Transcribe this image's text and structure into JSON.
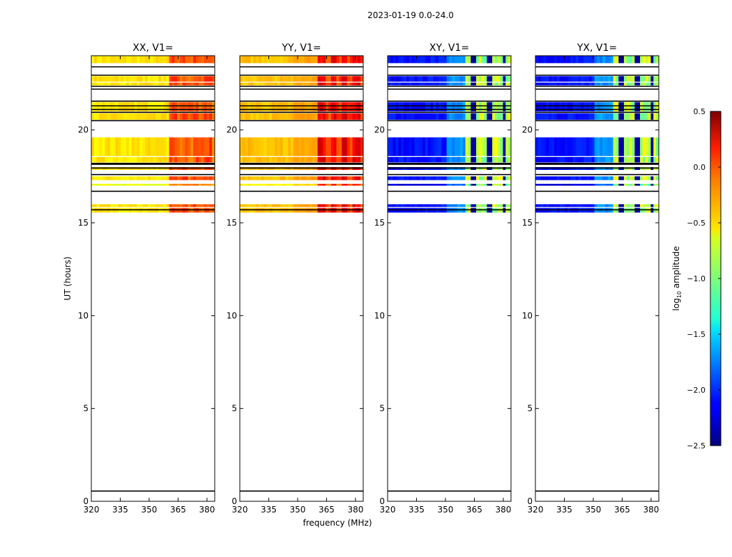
{
  "chart_data": {
    "type": "heatmap",
    "suptitle": "2023-01-19 0.0-24.0",
    "xlabel": "frequency (MHz)",
    "ylabel": "UT (hours)",
    "xlim": [
      320,
      384
    ],
    "ylim": [
      0,
      24
    ],
    "xticks": [
      320,
      335,
      350,
      365,
      380
    ],
    "yticks": [
      0,
      5,
      10,
      15,
      20
    ],
    "panels": [
      {
        "title": "XX, V1=",
        "kind": "parallel"
      },
      {
        "title": "YY, V1=",
        "kind": "parallel-strong"
      },
      {
        "title": "XY, V1=",
        "kind": "cross"
      },
      {
        "title": "YX, V1=",
        "kind": "cross"
      }
    ],
    "data_bands_ut": [
      [
        23.6,
        24.0
      ],
      [
        22.6,
        22.9
      ],
      [
        22.4,
        22.55
      ],
      [
        21.0,
        21.5
      ],
      [
        20.55,
        20.9
      ],
      [
        18.6,
        19.6
      ],
      [
        18.25,
        18.55
      ],
      [
        17.85,
        18.0
      ],
      [
        17.3,
        17.5
      ],
      [
        17.0,
        17.1
      ],
      [
        15.85,
        16.0
      ],
      [
        15.55,
        15.8
      ]
    ],
    "gap_lines_ut": [
      23.4,
      22.95,
      22.35,
      22.2,
      21.55,
      21.3,
      21.1,
      20.95,
      20.5,
      18.2,
      18.15,
      17.95,
      17.6,
      16.7,
      15.7,
      0.55
    ],
    "colorbar": {
      "label": "log10 amplitude",
      "range": [
        -2.5,
        0.5
      ],
      "ticks": [
        0.5,
        0.0,
        -0.5,
        -1.0,
        -1.5,
        -2.0,
        -2.5
      ],
      "tick_labels": [
        "0.5",
        "0.0",
        "−0.5",
        "−1.0",
        "−1.5",
        "−2.0",
        "−2.5"
      ],
      "colormap": "jet"
    }
  }
}
